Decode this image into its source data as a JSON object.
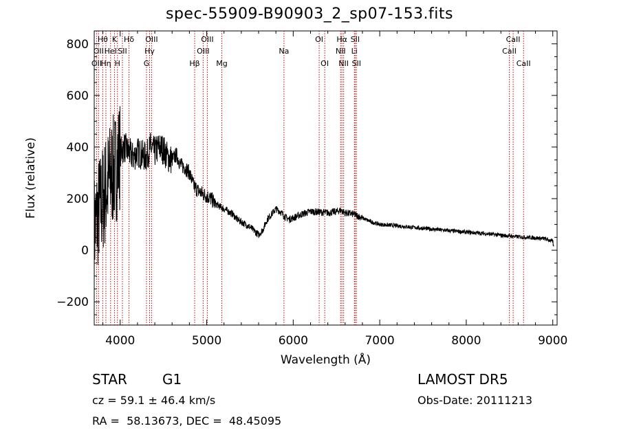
{
  "chart_data": {
    "type": "line",
    "title": "spec-55909-B90903_2_sp07-153.fits",
    "xlabel": "Wavelength (Å)",
    "ylabel": "Flux (relative)",
    "xlim": [
      3700,
      9050
    ],
    "ylim": [
      -290,
      850
    ],
    "xticks": [
      4000,
      5000,
      6000,
      7000,
      8000,
      9000
    ],
    "yticks": [
      -200,
      0,
      200,
      400,
      600,
      800
    ],
    "grid": false,
    "spectrum": {
      "x": [
        3700,
        3750,
        3800,
        3850,
        3900,
        3950,
        4000,
        4050,
        4100,
        4150,
        4200,
        4250,
        4300,
        4350,
        4400,
        4450,
        4500,
        4550,
        4600,
        4650,
        4700,
        4750,
        4800,
        4850,
        4900,
        4950,
        5000,
        5050,
        5100,
        5150,
        5200,
        5250,
        5300,
        5350,
        5400,
        5450,
        5500,
        5550,
        5600,
        5650,
        5700,
        5750,
        5800,
        5850,
        5900,
        5950,
        6000,
        6100,
        6200,
        6300,
        6400,
        6500,
        6550,
        6600,
        6700,
        6800,
        6900,
        7000,
        7200,
        7400,
        7600,
        7800,
        8000,
        8200,
        8400,
        8500,
        8600,
        8700,
        8800,
        8900,
        8950,
        9000,
        9010
      ],
      "y": [
        80,
        150,
        200,
        250,
        300,
        320,
        380,
        400,
        380,
        360,
        380,
        370,
        360,
        400,
        380,
        400,
        390,
        360,
        350,
        370,
        330,
        320,
        300,
        250,
        230,
        220,
        210,
        200,
        180,
        170,
        160,
        150,
        140,
        120,
        110,
        100,
        90,
        75,
        60,
        80,
        120,
        140,
        160,
        150,
        130,
        120,
        125,
        140,
        150,
        148,
        145,
        150,
        155,
        145,
        140,
        125,
        110,
        100,
        95,
        88,
        82,
        76,
        70,
        65,
        58,
        55,
        52,
        50,
        48,
        45,
        40,
        35,
        10
      ],
      "color": "#000000"
    },
    "lines": [
      {
        "wavelength": 3727,
        "label": "OII",
        "row": 2
      },
      {
        "wavelength": 3750,
        "label": "OII",
        "row": 1
      },
      {
        "wavelength": 3798,
        "label": "Hθ",
        "row": 0
      },
      {
        "wavelength": 3835,
        "label": "Hη",
        "row": 2
      },
      {
        "wavelength": 3889,
        "label": "HeI",
        "row": 1
      },
      {
        "wavelength": 3934,
        "label": "K",
        "row": 0
      },
      {
        "wavelength": 3968,
        "label": "H",
        "row": 2
      },
      {
        "wavelength": 4026,
        "label": "SII",
        "row": 1
      },
      {
        "wavelength": 4102,
        "label": "Hδ",
        "row": 0
      },
      {
        "wavelength": 4304,
        "label": "G",
        "row": 2
      },
      {
        "wavelength": 4340,
        "label": "Hγ",
        "row": 1
      },
      {
        "wavelength": 4363,
        "label": "OIII",
        "row": 0
      },
      {
        "wavelength": 4861,
        "label": "Hβ",
        "row": 2
      },
      {
        "wavelength": 4959,
        "label": "OIII",
        "row": 1
      },
      {
        "wavelength": 5007,
        "label": "OIII",
        "row": 0
      },
      {
        "wavelength": 5175,
        "label": "Mg",
        "row": 2
      },
      {
        "wavelength": 5893,
        "label": "Na",
        "row": 1
      },
      {
        "wavelength": 6300,
        "label": "OI",
        "row": 0
      },
      {
        "wavelength": 6364,
        "label": "OI",
        "row": 2
      },
      {
        "wavelength": 6548,
        "label": "NII",
        "row": 1
      },
      {
        "wavelength": 6563,
        "label": "Hα",
        "row": 0
      },
      {
        "wavelength": 6583,
        "label": "NII",
        "row": 2
      },
      {
        "wavelength": 6707,
        "label": "Li",
        "row": 1
      },
      {
        "wavelength": 6716,
        "label": "SII",
        "row": 0
      },
      {
        "wavelength": 6731,
        "label": "SII",
        "row": 2
      },
      {
        "wavelength": 8498,
        "label": "CaII",
        "row": 1
      },
      {
        "wavelength": 8542,
        "label": "CaII",
        "row": 0
      },
      {
        "wavelength": 8662,
        "label": "CaII",
        "row": 2
      }
    ],
    "line_marker_color": "#c00000"
  },
  "info": {
    "class": "STAR",
    "subclass": "G1",
    "survey": "LAMOST DR5",
    "cz": "cz = 59.1 ± 46.4 km/s",
    "obs_date": "Obs-Date: 20111213",
    "radec": "RA =  58.13673, DEC =  48.45095"
  }
}
